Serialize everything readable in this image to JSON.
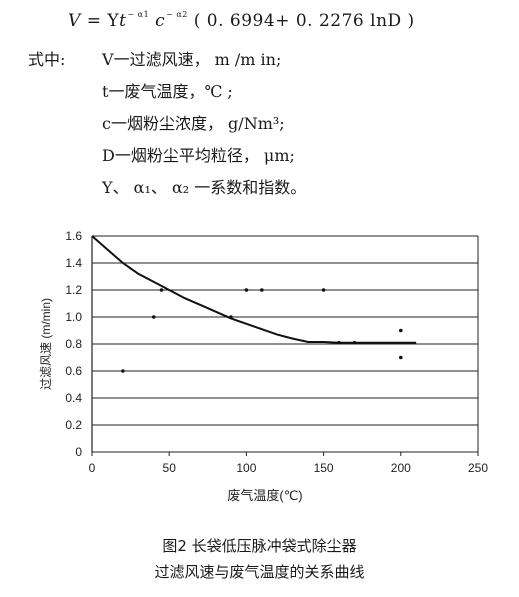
{
  "formula": {
    "lhs": "V",
    "eq": "=",
    "coef": "Y",
    "t": "t",
    "t_exp": "− α1",
    "c": "c",
    "c_exp": "− α2",
    "tail": "( 0. 6994+  0. 2276 lnD )"
  },
  "definitions": {
    "where": "式中:",
    "rows": [
      {
        "symbol": "V",
        "text": "一过滤风速，  m /m in;"
      },
      {
        "symbol": "t",
        "text": "一废气温度，℃ ;"
      },
      {
        "symbol": "c",
        "text": "一烟粉尘浓度，  g/Nm³;"
      },
      {
        "symbol": "D",
        "text": "一烟粉尘平均粒径，  μm;"
      },
      {
        "symbol": "",
        "text": "Y、 α₁、 α₂ 一系数和指数。"
      }
    ]
  },
  "chart_data": {
    "type": "line",
    "xlabel": "废气温度(℃)",
    "ylabel": "过滤风速 (m/min)",
    "xlim": [
      0,
      250
    ],
    "ylim": [
      0,
      1.6
    ],
    "xticks": [
      "0",
      "50",
      "100",
      "150",
      "200",
      "250"
    ],
    "yticks": [
      "0",
      "0.2",
      "0.4",
      "0.6",
      "0.8",
      "1.0",
      "1.2",
      "1.4",
      "1.6"
    ],
    "grid": "horizontal",
    "series": [
      {
        "type": "line",
        "values": [
          [
            0,
            1.6
          ],
          [
            10,
            1.5
          ],
          [
            20,
            1.4
          ],
          [
            30,
            1.32
          ],
          [
            40,
            1.26
          ],
          [
            50,
            1.2
          ],
          [
            60,
            1.14
          ],
          [
            70,
            1.09
          ],
          [
            80,
            1.04
          ],
          [
            90,
            0.99
          ],
          [
            100,
            0.95
          ],
          [
            110,
            0.91
          ],
          [
            120,
            0.87
          ],
          [
            130,
            0.84
          ],
          [
            140,
            0.815
          ],
          [
            150,
            0.815
          ],
          [
            160,
            0.81
          ],
          [
            170,
            0.81
          ],
          [
            180,
            0.81
          ],
          [
            190,
            0.81
          ],
          [
            200,
            0.81
          ],
          [
            210,
            0.81
          ]
        ]
      },
      {
        "type": "scatter",
        "values": [
          [
            20,
            0.6
          ],
          [
            40,
            1.0
          ],
          [
            45,
            1.2
          ],
          [
            90,
            1.0
          ],
          [
            100,
            1.2
          ],
          [
            110,
            1.2
          ],
          [
            150,
            1.2
          ],
          [
            160,
            0.81
          ],
          [
            170,
            0.81
          ],
          [
            200,
            0.9
          ],
          [
            200,
            0.7
          ]
        ]
      }
    ]
  },
  "caption": {
    "line1": "图2   长袋低压脉冲袋式除尘器",
    "line2": "过滤风速与废气温度的关系曲线"
  }
}
